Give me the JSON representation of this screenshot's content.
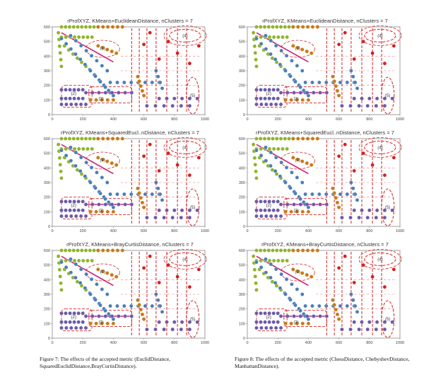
{
  "panels": [
    {
      "id": "p1",
      "title": "rProfXYZ, KMeans+EuclideanDistance, nClusters = 7"
    },
    {
      "id": "p2",
      "title": "rProfXYZ, KMeans+EuclideanDistance, nClusters = 7"
    },
    {
      "id": "p3",
      "title": "rProfXYZ, KMeans+SquaredEucl..nDistance, nClusters = 7"
    },
    {
      "id": "p4",
      "title": "rProfXYZ, KMeans+SquaredEucl..nDistance, nClusters = 7"
    },
    {
      "id": "p5",
      "title": "rProfXYZ, KMeans+BrayCurtisDistance, nClusters = 7"
    },
    {
      "id": "p6",
      "title": "rProfXYZ, KMeans+BrayCurtisDistance, nClusters = 7"
    }
  ],
  "axes": {
    "x_ticks": [
      "0",
      "200",
      "400",
      "600",
      "800",
      "1000"
    ],
    "y_ticks": [
      "0",
      "100",
      "200",
      "300",
      "400",
      "500",
      "600"
    ],
    "xlim": [
      0,
      1000
    ],
    "ylim": [
      0,
      600
    ]
  },
  "cluster_labels": [
    "(1)",
    "(2)",
    "(3)",
    "(4)",
    "(5)"
  ],
  "colors": {
    "green": "#8fb52a",
    "blue": "#4a7fb7",
    "orange": "#c87a14",
    "purple": "#6b5aa8",
    "red_dash": "#d42020",
    "magenta": "#cc1f7a",
    "grid": "#cccccc",
    "frame": "#888888"
  },
  "captions": {
    "left": "Figure 7: The effects of the accepted metric (EuclidDistance, SquaredEuclidDistance,BrayCurtisDistance).",
    "right": "Figure 8: The effects of the accepted metric (ChessDistance, ChebyshevDistance, ManhattanDistance)."
  }
}
